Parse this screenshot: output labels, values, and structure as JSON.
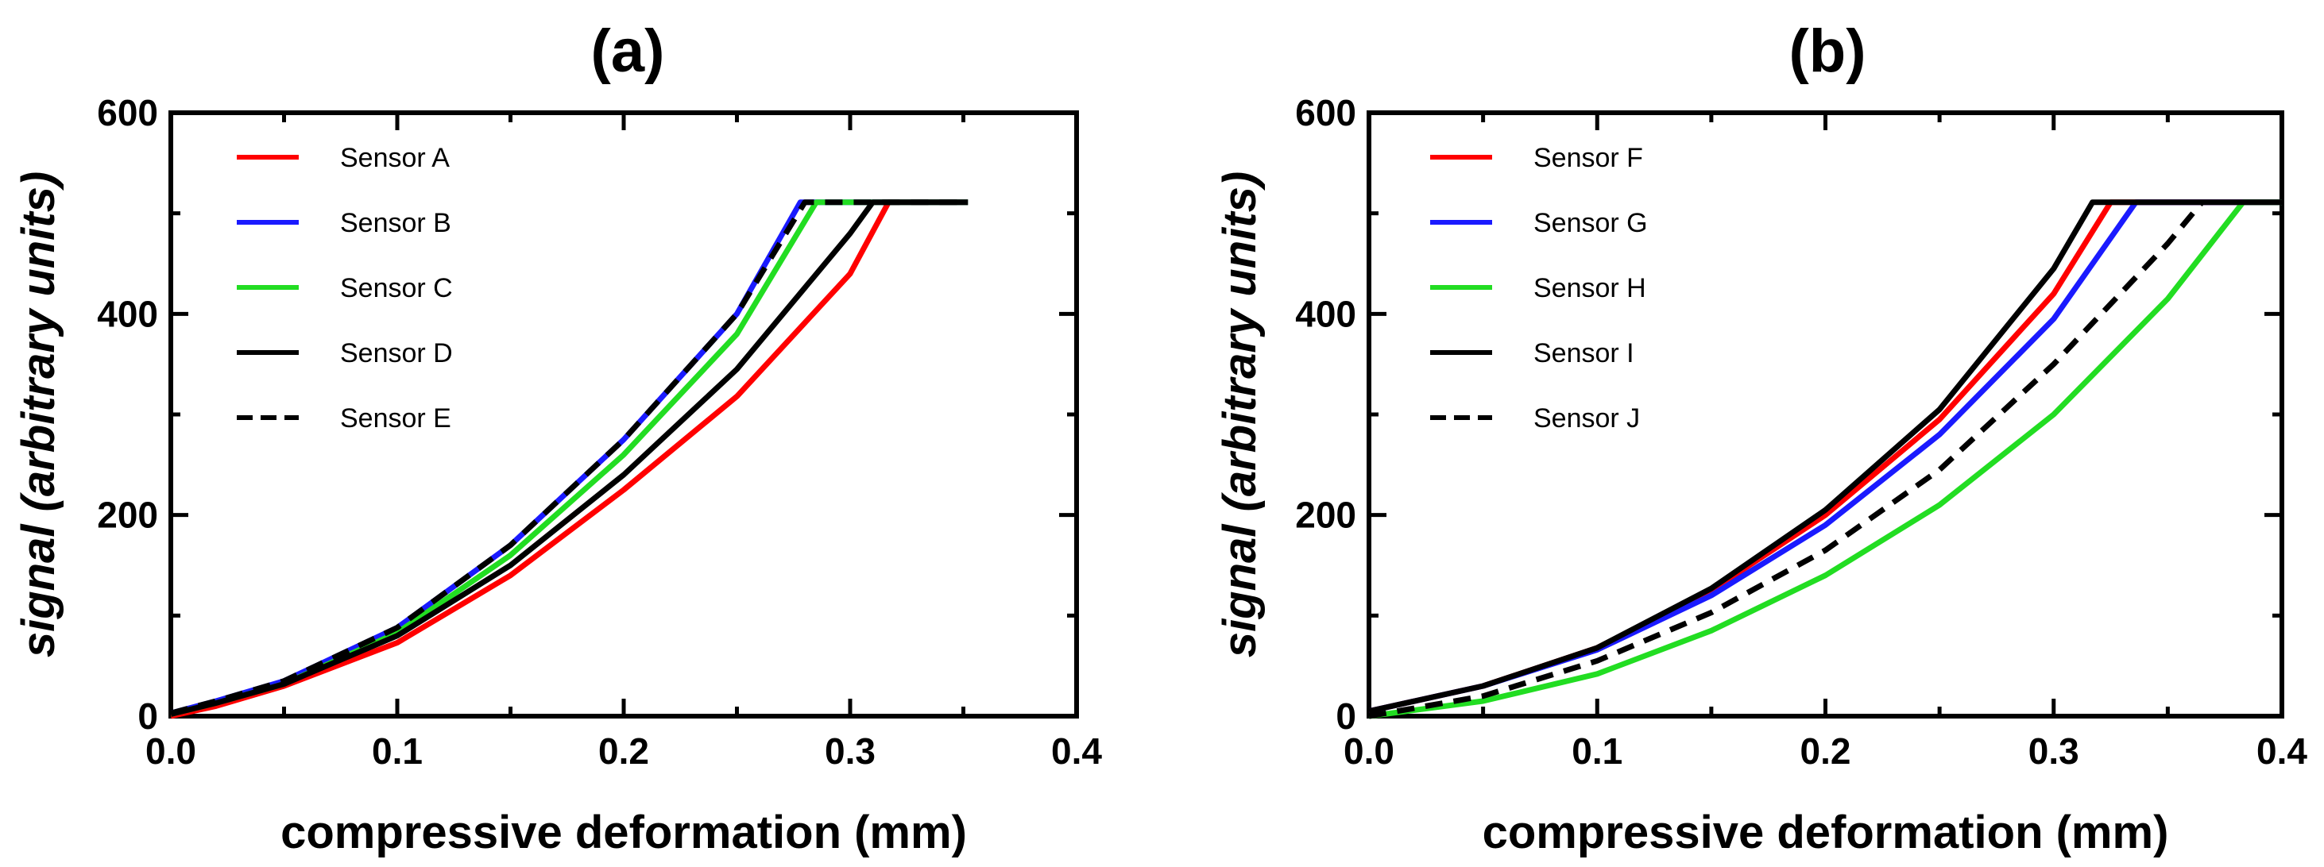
{
  "chart_data": [
    {
      "type": "line",
      "title": "(a)",
      "xlabel": "compressive deformation (mm)",
      "ylabel_italic": "signal",
      "ylabel_rest": " (arbitrary units)",
      "xlim": [
        0,
        0.4
      ],
      "ylim": [
        0,
        600
      ],
      "xticks": [
        "0.0",
        "0.1",
        "0.2",
        "0.3",
        "0.4"
      ],
      "yticks": [
        "0",
        "200",
        "400",
        "600"
      ],
      "legend_position": "top-left",
      "series": [
        {
          "name": "Sensor A",
          "color": "#ff0000",
          "dash": "solid",
          "x": [
            0.0,
            0.02,
            0.05,
            0.1,
            0.15,
            0.2,
            0.25,
            0.3,
            0.317,
            0.352
          ],
          "y": [
            0,
            10,
            30,
            73,
            140,
            225,
            318,
            440,
            511,
            511
          ]
        },
        {
          "name": "Sensor B",
          "color": "#1a1aff",
          "dash": "solid",
          "x": [
            0.0,
            0.02,
            0.05,
            0.1,
            0.15,
            0.2,
            0.25,
            0.278,
            0.352
          ],
          "y": [
            3,
            15,
            35,
            88,
            170,
            275,
            400,
            511,
            511
          ]
        },
        {
          "name": "Sensor C",
          "color": "#22dd22",
          "dash": "solid",
          "x": [
            0.0,
            0.02,
            0.05,
            0.1,
            0.15,
            0.2,
            0.25,
            0.285,
            0.352
          ],
          "y": [
            2,
            13,
            32,
            83,
            160,
            260,
            380,
            511,
            511
          ]
        },
        {
          "name": "Sensor D",
          "color": "#000000",
          "dash": "solid",
          "x": [
            0.0,
            0.02,
            0.05,
            0.1,
            0.15,
            0.2,
            0.25,
            0.3,
            0.31,
            0.352
          ],
          "y": [
            2,
            13,
            32,
            80,
            150,
            240,
            345,
            480,
            511,
            511
          ]
        },
        {
          "name": "Sensor E",
          "color": "#000000",
          "dash": "dashed",
          "x": [
            0.0,
            0.02,
            0.05,
            0.1,
            0.15,
            0.2,
            0.25,
            0.28,
            0.352
          ],
          "y": [
            3,
            15,
            35,
            88,
            170,
            275,
            400,
            511,
            511
          ]
        }
      ]
    },
    {
      "type": "line",
      "title": "(b)",
      "xlabel": "compressive deformation (mm)",
      "ylabel_italic": "signal",
      "ylabel_rest": " (arbitrary units)",
      "xlim": [
        0,
        0.4
      ],
      "ylim": [
        0,
        600
      ],
      "xticks": [
        "0.0",
        "0.1",
        "0.2",
        "0.3",
        "0.4"
      ],
      "yticks": [
        "0",
        "200",
        "400",
        "600"
      ],
      "legend_position": "top-left",
      "series": [
        {
          "name": "Sensor F",
          "color": "#ff0000",
          "dash": "solid",
          "x": [
            0.0,
            0.05,
            0.1,
            0.15,
            0.2,
            0.25,
            0.3,
            0.325,
            0.4
          ],
          "y": [
            5,
            30,
            68,
            125,
            200,
            295,
            420,
            511,
            511
          ]
        },
        {
          "name": "Sensor G",
          "color": "#1a1aff",
          "dash": "solid",
          "x": [
            0.0,
            0.05,
            0.1,
            0.15,
            0.2,
            0.25,
            0.3,
            0.336,
            0.4
          ],
          "y": [
            5,
            30,
            66,
            120,
            190,
            280,
            395,
            511,
            511
          ]
        },
        {
          "name": "Sensor H",
          "color": "#22dd22",
          "dash": "solid",
          "x": [
            0.0,
            0.05,
            0.1,
            0.15,
            0.2,
            0.25,
            0.3,
            0.35,
            0.383,
            0.4
          ],
          "y": [
            0,
            15,
            42,
            85,
            140,
            210,
            300,
            415,
            511,
            511
          ]
        },
        {
          "name": "Sensor I",
          "color": "#000000",
          "dash": "solid",
          "x": [
            0.0,
            0.05,
            0.1,
            0.15,
            0.2,
            0.25,
            0.3,
            0.317,
            0.4
          ],
          "y": [
            5,
            30,
            68,
            127,
            205,
            305,
            445,
            511,
            511
          ]
        },
        {
          "name": "Sensor J",
          "color": "#000000",
          "dash": "dashed",
          "x": [
            0.0,
            0.05,
            0.1,
            0.15,
            0.2,
            0.25,
            0.3,
            0.35,
            0.365
          ],
          "y": [
            0,
            20,
            55,
            103,
            165,
            245,
            350,
            470,
            511
          ]
        }
      ]
    }
  ]
}
